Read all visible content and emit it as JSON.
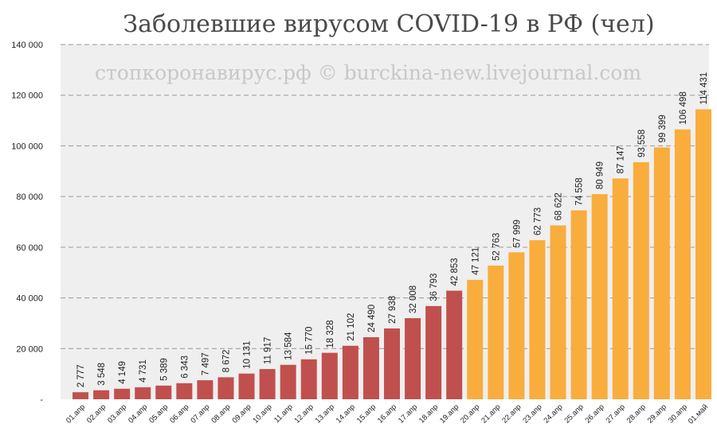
{
  "chart_data": {
    "type": "bar",
    "title": "Заболевшие вирусом COVID-19 в РФ (чел)",
    "watermark": "стопкоронавирус.рф © burckina-new.livejournal.com",
    "categories": [
      "01.апр",
      "02.апр",
      "03.апр",
      "04.апр",
      "05.апр",
      "06.апр",
      "07.апр",
      "08.апр",
      "09.апр",
      "10.апр",
      "11.апр",
      "12.апр",
      "13.апр",
      "14.апр",
      "15.апр",
      "16.апр",
      "17.апр",
      "18.апр",
      "19.апр",
      "20.апр",
      "21.апр",
      "22.апр",
      "23.апр",
      "24.апр",
      "25.апр",
      "26.апр",
      "27.апр",
      "28.апр",
      "29.апр",
      "30.апр",
      "01.май"
    ],
    "values": [
      2777,
      3548,
      4149,
      4731,
      5389,
      6343,
      7497,
      8672,
      10131,
      11917,
      13584,
      15770,
      18328,
      21102,
      24490,
      27938,
      32008,
      36793,
      42853,
      47121,
      52763,
      57999,
      62773,
      68622,
      74558,
      80949,
      87147,
      93558,
      99399,
      106498,
      114431
    ],
    "value_labels": [
      "2 777",
      "3 548",
      "4 149",
      "4 731",
      "5 389",
      "6 343",
      "7 497",
      "8 672",
      "10 131",
      "11 917",
      "13 584",
      "15 770",
      "18 328",
      "21 102",
      "24 490",
      "27 938",
      "32 008",
      "36 793",
      "42 853",
      "47 121",
      "52 763",
      "57 999",
      "62 773",
      "68 622",
      "74 558",
      "80 949",
      "87 147",
      "93 558",
      "99 399",
      "106 498",
      "114 431"
    ],
    "y_ticks": [
      0,
      20000,
      40000,
      60000,
      80000,
      100000,
      120000,
      140000
    ],
    "y_tick_labels": [
      "-",
      "20 000",
      "40 000",
      "60 000",
      "80 000",
      "100 000",
      "120 000",
      "140 000"
    ],
    "ylim": [
      0,
      140000
    ],
    "grid": true,
    "colors": {
      "first_period": "#c0504d",
      "second_period": "#f9ad3d",
      "background": "#efefef",
      "grid": "#9a9a9a"
    },
    "color_split_index": 19
  }
}
